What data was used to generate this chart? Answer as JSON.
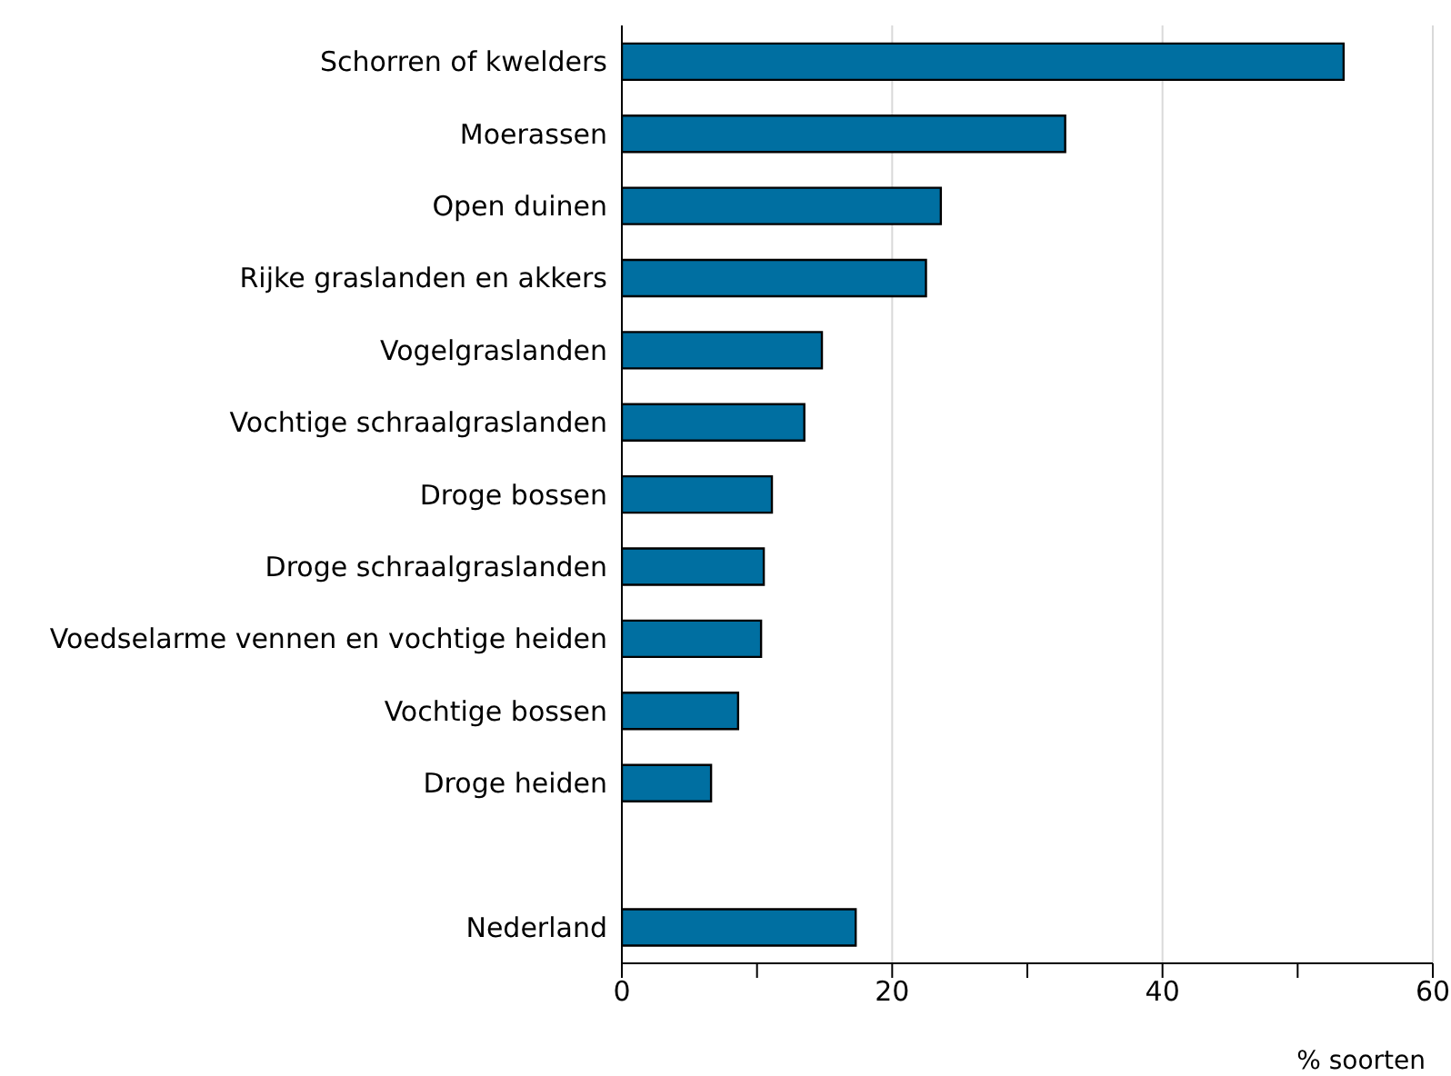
{
  "chart_data": {
    "type": "bar",
    "orientation": "horizontal",
    "xlabel": "% soorten",
    "categories": [
      "Schorren of kwelders",
      "Moerassen",
      "Open duinen",
      "Rijke graslanden en akkers",
      "Vogelgraslanden",
      "Vochtige schraalgraslanden",
      "Droge bossen",
      "Droge schraalgraslanden",
      "Voedselarme vennen en vochtige heiden",
      "Vochtige bossen",
      "Droge heiden",
      null,
      "Nederland"
    ],
    "values": [
      53.4,
      32.8,
      23.6,
      22.5,
      14.8,
      13.5,
      11.1,
      10.5,
      10.3,
      8.6,
      6.6,
      null,
      17.3
    ],
    "color": "#006fa1",
    "xlim": [
      0,
      60
    ],
    "xticks": [
      0,
      {
        "value": 10,
        "label": null
      },
      20,
      {
        "value": 30,
        "label": null
      },
      40,
      {
        "value": 50,
        "label": null
      },
      60
    ],
    "grid": "x"
  }
}
